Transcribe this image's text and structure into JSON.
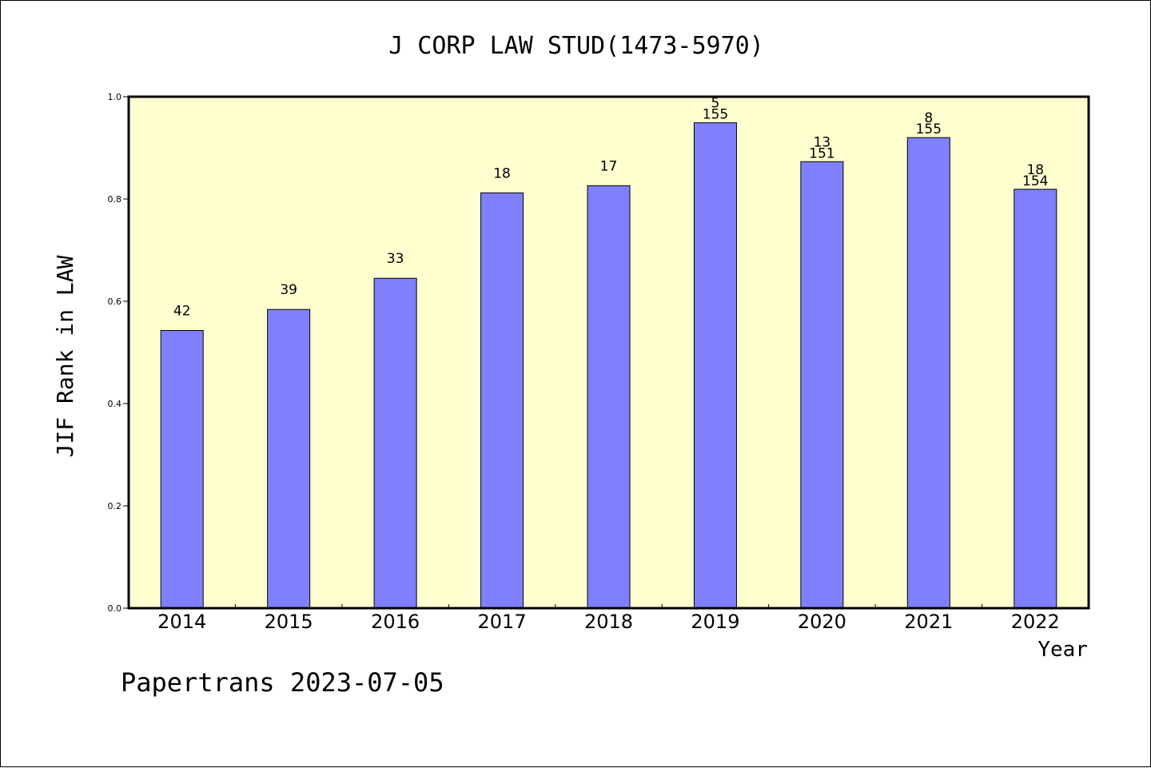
{
  "chart_data": {
    "type": "bar",
    "title": "J CORP LAW STUD(1473-5970)",
    "xlabel": "Year",
    "ylabel": "JIF Rank in LAW",
    "ylim": [
      0,
      1.0
    ],
    "yticks": [
      "0.0",
      "0.2",
      "0.4",
      "0.6",
      "0.8",
      "1.0"
    ],
    "categories": [
      "2014",
      "2015",
      "2016",
      "2017",
      "2018",
      "2019",
      "2020",
      "2021",
      "2022"
    ],
    "values": [
      0.543,
      0.584,
      0.645,
      0.812,
      0.826,
      0.949,
      0.873,
      0.92,
      0.819
    ],
    "labels_top": [
      "42",
      "39",
      "33",
      "18",
      "17",
      "5",
      "13",
      "8",
      "18"
    ],
    "labels_bottom": [
      "",
      "",
      "",
      "",
      "",
      "155",
      "151",
      "155",
      "154"
    ],
    "grid": false,
    "legend": "none",
    "colors": {
      "bar_fill": "#8080ff",
      "plot_background": "#ffffd0",
      "axis": "#000000"
    }
  },
  "footer": {
    "credit": "Papertrans 2023-07-05"
  }
}
